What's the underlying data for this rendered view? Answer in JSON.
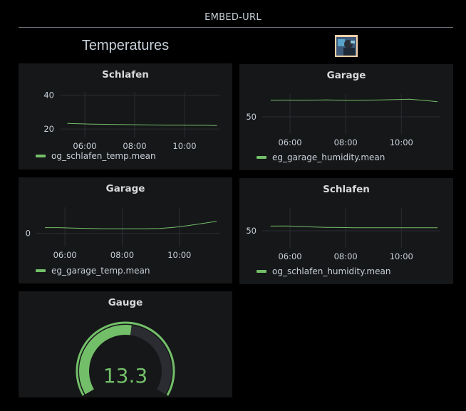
{
  "header": {
    "title": "EMBED-URL"
  },
  "section": {
    "title": "Temperatures"
  },
  "colors": {
    "series": "#73bf69",
    "panel_bg": "#161719",
    "grid": "#2b2d31"
  },
  "panels": [
    {
      "title": "Schlafen",
      "legend": "og_schlafen_temp.mean",
      "chart_data": {
        "type": "line",
        "x_ticks": [
          "06:00",
          "08:00",
          "10:00"
        ],
        "y_ticks": [
          "20",
          "40"
        ],
        "series": [
          {
            "name": "og_schlafen_temp.mean",
            "x": [
              5.3,
              5.8,
              6.3,
              6.8,
              7.3,
              7.8,
              8.3,
              8.8,
              9.3,
              9.8,
              10.3,
              10.8,
              11.3
            ],
            "values": [
              23.3,
              23.1,
              22.9,
              22.8,
              22.7,
              22.6,
              22.5,
              22.4,
              22.3,
              22.3,
              22.2,
              22.2,
              22.1
            ]
          }
        ]
      }
    },
    {
      "title": "Garage",
      "legend": "eg_garage_humidity.mean",
      "chart_data": {
        "type": "line",
        "x_ticks": [
          "06:00",
          "08:00",
          "10:00"
        ],
        "y_ticks": [
          "50"
        ],
        "series": [
          {
            "name": "eg_garage_humidity.mean",
            "x": [
              5.3,
              5.8,
              6.3,
              6.8,
              7.3,
              7.8,
              8.3,
              8.8,
              9.3,
              9.8,
              10.3,
              10.6,
              10.9,
              11.3
            ],
            "values": [
              64.5,
              64.6,
              64.5,
              64.6,
              64.8,
              64.5,
              64.4,
              64.6,
              64.9,
              65.2,
              65.5,
              64.9,
              64.2,
              63.3
            ]
          }
        ]
      }
    },
    {
      "title": "Garage",
      "legend": "eg_garage_temp.mean",
      "chart_data": {
        "type": "line",
        "x_ticks": [
          "06:00",
          "08:00",
          "10:00"
        ],
        "y_ticks": [
          "0"
        ],
        "series": [
          {
            "name": "eg_garage_temp.mean",
            "x": [
              5.3,
              5.8,
              6.3,
              6.8,
              7.3,
              7.8,
              8.3,
              8.8,
              9.3,
              9.8,
              10.3,
              10.8,
              11.3
            ],
            "values": [
              2.2,
              2.2,
              2.0,
              1.9,
              1.8,
              1.8,
              1.8,
              1.8,
              1.9,
              2.3,
              3.0,
              3.8,
              4.6
            ]
          }
        ]
      }
    },
    {
      "title": "Schlafen",
      "legend": "og_schlafen_humidity.mean",
      "chart_data": {
        "type": "line",
        "x_ticks": [
          "06:00",
          "08:00",
          "10:00"
        ],
        "y_ticks": [
          "50"
        ],
        "series": [
          {
            "name": "og_schlafen_humidity.mean",
            "x": [
              5.3,
              5.8,
              6.3,
              6.8,
              7.3,
              7.8,
              8.3,
              8.8,
              9.3,
              9.8,
              10.3,
              10.8,
              11.3
            ],
            "values": [
              54.1,
              54.2,
              54.0,
              53.4,
              53.0,
              52.9,
              52.7,
              52.7,
              52.6,
              52.6,
              52.6,
              52.6,
              52.6
            ]
          }
        ]
      }
    }
  ],
  "gauge": {
    "title": "Gauge",
    "value": "13.3",
    "chart_data": {
      "type": "gauge",
      "value": 13.3,
      "min": 0,
      "max": 25
    }
  }
}
